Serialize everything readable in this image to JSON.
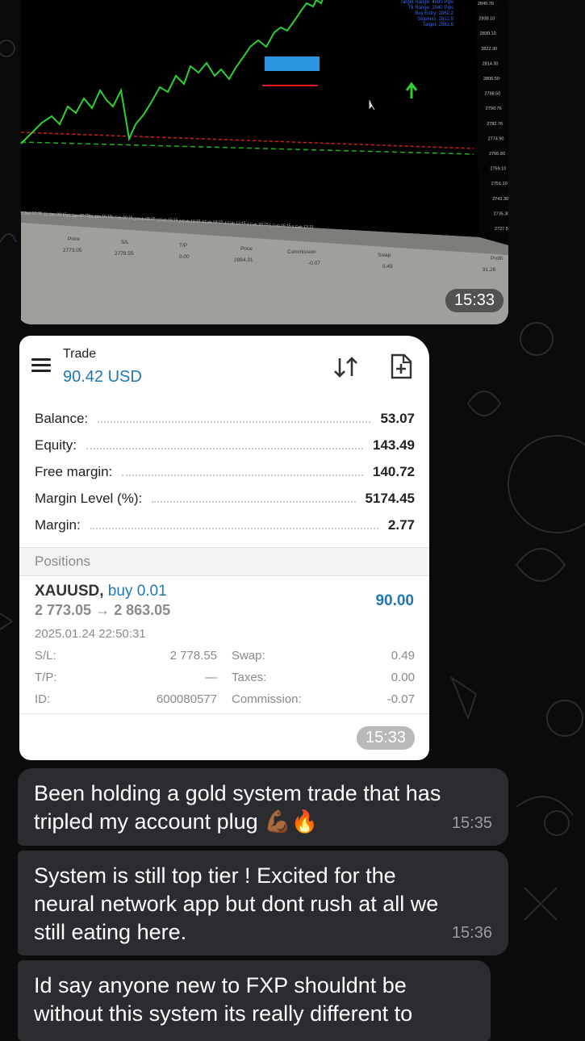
{
  "photo": {
    "time": "15:33",
    "chart_right_prices": [
      "2845.76",
      "2838.10",
      "2830.10",
      "2822.30",
      "2814.30",
      "2806.50",
      "2798.50",
      "2790.76",
      "2782.76",
      "2774.90",
      "2766.90",
      "2759.10",
      "2751.10",
      "2743.30",
      "2735.30",
      "2727.50"
    ],
    "chart_bottom_dates": [
      "5 Jan 17:15",
      "31 Jan 00:15",
      "31 Jan 08:15",
      "31 Jan 16:15",
      "3 Feb 00:15",
      "3 Feb 08:15",
      "3 Feb 15:15",
      "3 Feb 19:15",
      "4 Feb 04:15",
      "4 Feb 12:15",
      "4 Feb 20:15",
      "5 Feb 05:15",
      "5 Feb 13:15"
    ],
    "chart_info_lines": [
      "Target Range: 4590 Pips",
      "Tk Range: 2040 Pips",
      "Buy Entry: 2862.2",
      "Stoploss: 2812.9",
      "Target: 2882.9"
    ],
    "table_headers": [
      "Price",
      "S/L",
      "T/P",
      "Price",
      "Commission",
      "Swap",
      "Profit"
    ],
    "table_values": [
      "2773.05",
      "2778.55",
      "0.00",
      "2864.31",
      "-0.07",
      "0.49",
      "91.26"
    ]
  },
  "trade": {
    "title": "Trade",
    "balance_display": "90.42 USD",
    "time": "15:33",
    "summary": [
      {
        "label": "Balance:",
        "value": "53.07"
      },
      {
        "label": "Equity:",
        "value": "143.49"
      },
      {
        "label": "Free margin:",
        "value": "140.72"
      },
      {
        "label": "Margin Level (%):",
        "value": "5174.45"
      },
      {
        "label": "Margin:",
        "value": "2.77"
      }
    ],
    "positions_header": "Positions",
    "position": {
      "symbol": "XAUUSD,",
      "direction": " buy 0.01",
      "prices": "2 773.05 → 2 863.05",
      "profit": "90.00",
      "datetime": "2025.01.24 22:50:31",
      "sl_label": "S/L:",
      "sl_value": "2 778.55",
      "tp_label": "T/P:",
      "tp_value": "—",
      "id_label": "ID:",
      "id_value": "600080577",
      "swap_label": "Swap:",
      "swap_value": "0.49",
      "taxes_label": "Taxes:",
      "taxes_value": "0.00",
      "commission_label": "Commission:",
      "commission_value": "-0.07"
    }
  },
  "messages": [
    {
      "line1": "Been holding a gold system trade that has",
      "line2": "tripled my account plug 💪🏾🔥",
      "time": "15:35"
    },
    {
      "line1": "System is still top tier ! Excited for the",
      "line2": "neural network app but dont rush at all we",
      "line3": "still eating here.",
      "time": "15:36"
    },
    {
      "line1": "Id say anyone new to FXP shouldnt be",
      "line2": "without this system its really different to"
    }
  ],
  "colors": {
    "accent_blue": "#1e78b6",
    "bubble_bg": "#2b2c30",
    "chart_green": "#2fd02f"
  },
  "icons": [
    "menu-icon",
    "sort-icon",
    "new-order-icon",
    "up-arrow-icon"
  ]
}
